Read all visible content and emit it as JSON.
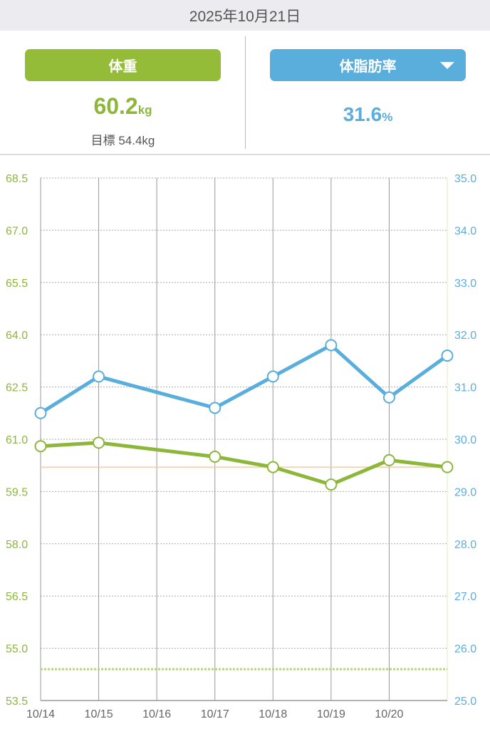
{
  "header": {
    "date": "2025年10月21日"
  },
  "weight": {
    "label": "体重",
    "value": "60.2",
    "unit": "kg",
    "goal_label": "目標 54.4kg"
  },
  "fat": {
    "label": "体脂肪率",
    "value": "31.6",
    "unit": "%",
    "dropdown_icon": "triangle-down-icon"
  },
  "colors": {
    "weight": "#8db73a",
    "fat": "#5aaedc",
    "ref": "#f5c9a8"
  },
  "chart_data": {
    "type": "line",
    "categories": [
      "10/14",
      "10/15",
      "10/16",
      "10/17",
      "10/18",
      "10/19",
      "10/20",
      "10/21"
    ],
    "x_tick_labels": [
      "10/14",
      "10/15",
      "10/16",
      "10/17",
      "10/18",
      "10/19",
      "10/20"
    ],
    "left_axis": {
      "ylim": [
        53.5,
        68.5
      ],
      "ticks": [
        "68.5",
        "67.0",
        "65.5",
        "64.0",
        "62.5",
        "61.0",
        "59.5",
        "58.0",
        "56.5",
        "55.0",
        "53.5"
      ]
    },
    "right_axis": {
      "ylim": [
        25.0,
        35.0
      ],
      "ticks": [
        "35.0",
        "34.0",
        "33.0",
        "32.0",
        "31.0",
        "30.0",
        "29.0",
        "28.0",
        "27.0",
        "26.0",
        "25.0"
      ]
    },
    "series": [
      {
        "name": "体重",
        "axis": "left",
        "values": [
          60.8,
          60.9,
          null,
          60.5,
          60.2,
          59.7,
          60.4,
          60.2
        ]
      },
      {
        "name": "体脂肪率",
        "axis": "right",
        "values": [
          30.5,
          31.2,
          null,
          30.6,
          31.2,
          31.8,
          30.8,
          31.6
        ]
      }
    ],
    "reference_lines": [
      {
        "name": "current-weight",
        "value": 60.2
      },
      {
        "name": "goal-weight",
        "value": 54.4
      }
    ]
  }
}
